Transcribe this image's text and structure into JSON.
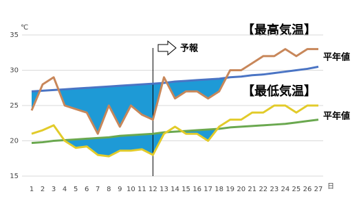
{
  "chart_data": {
    "type": "line",
    "unit_label": "℃",
    "x_unit_label": "日",
    "categories": [
      1,
      2,
      3,
      4,
      5,
      6,
      7,
      8,
      9,
      10,
      11,
      12,
      13,
      14,
      15,
      16,
      17,
      18,
      19,
      20,
      21,
      22,
      23,
      24,
      25,
      26,
      27
    ],
    "ylim": [
      15,
      35
    ],
    "yticks": [
      15,
      20,
      25,
      30,
      35
    ],
    "grid": true,
    "forecast_day": 12,
    "forecast_label": "予報",
    "series": [
      {
        "name": "【最高気温】",
        "color": "#c8875a",
        "values": [
          24.3,
          28,
          29,
          25,
          24.5,
          24,
          21,
          25,
          22,
          25,
          23.7,
          23,
          29,
          26,
          27,
          27,
          26,
          27,
          30,
          30,
          31,
          32,
          32,
          33,
          32,
          33,
          33
        ]
      },
      {
        "name": "平年値",
        "color": "#4a74c4",
        "values": [
          27.0,
          27.1,
          27.2,
          27.3,
          27.4,
          27.5,
          27.6,
          27.7,
          27.8,
          27.9,
          28.0,
          28.1,
          28.2,
          28.4,
          28.5,
          28.6,
          28.7,
          28.8,
          29.0,
          29.1,
          29.3,
          29.4,
          29.6,
          29.8,
          30.0,
          30.2,
          30.5
        ]
      },
      {
        "name": "【最低気温】",
        "color": "#e2cb2a",
        "values": [
          21,
          21.5,
          22.2,
          20,
          19,
          19.2,
          18,
          17.8,
          18.6,
          18.6,
          18.8,
          18,
          21,
          22,
          21,
          21,
          20,
          22,
          23,
          23,
          24,
          24,
          25,
          25,
          24,
          25,
          25
        ]
      },
      {
        "name": "平年値",
        "color": "#6aa84f",
        "values": [
          19.7,
          19.8,
          20.0,
          20.1,
          20.2,
          20.3,
          20.4,
          20.5,
          20.7,
          20.8,
          20.9,
          21.0,
          21.2,
          21.3,
          21.4,
          21.5,
          21.6,
          21.7,
          21.9,
          22.0,
          22.1,
          22.2,
          22.3,
          22.4,
          22.6,
          22.8,
          23.0
        ]
      }
    ]
  }
}
